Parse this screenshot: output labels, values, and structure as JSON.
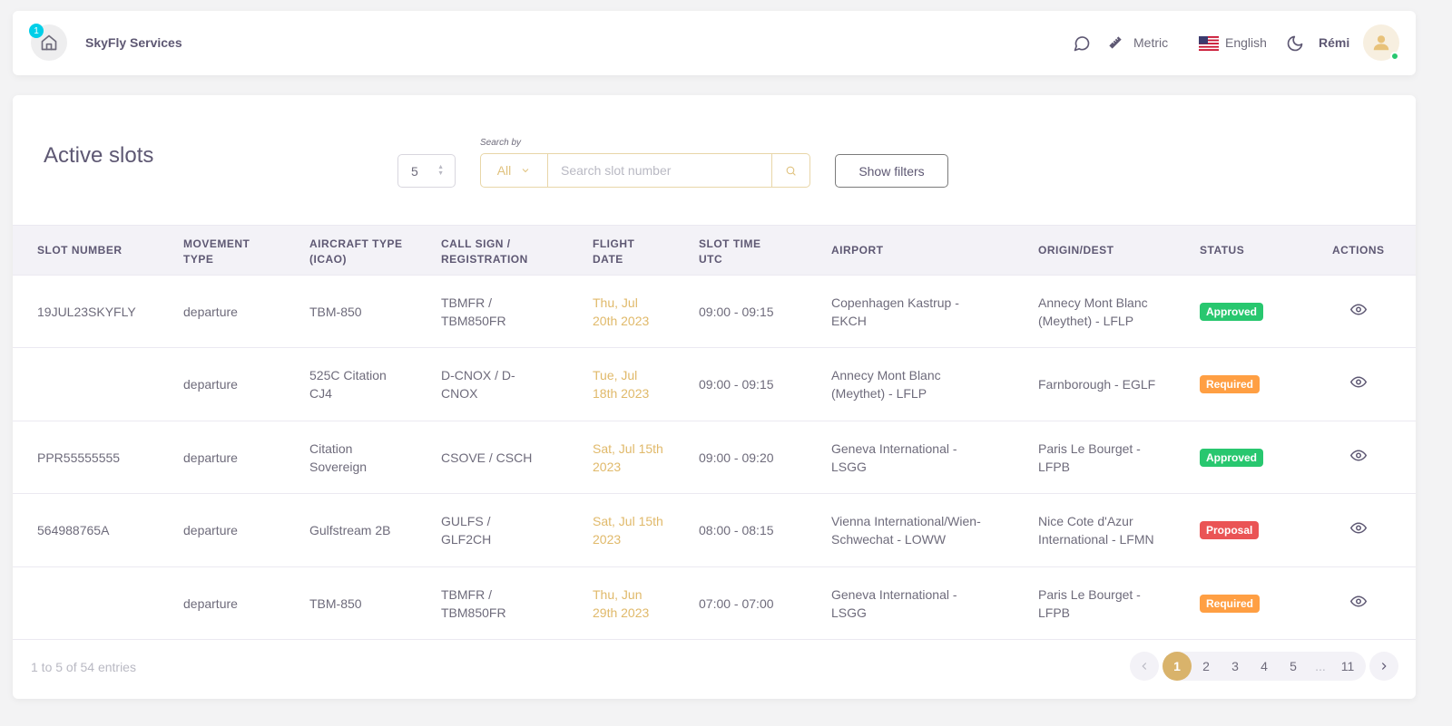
{
  "header": {
    "notification_count": "1",
    "brand": "SkyFly Services",
    "units_label": "Metric",
    "language_label": "English",
    "user_name": "Rémi"
  },
  "page": {
    "title": "Active slots",
    "per_page_value": "5",
    "search_by_label": "Search by",
    "search_by_value": "All",
    "search_placeholder": "Search slot number",
    "show_filters_label": "Show filters"
  },
  "table": {
    "columns": [
      "Slot number",
      "Movement type",
      "Aircraft type (ICAO)",
      "Call sign / Registration",
      "Flight date",
      "Slot time UTC",
      "Airport",
      "Origin/Dest",
      "Status",
      "Actions"
    ],
    "rows": [
      {
        "slot": "19JUL23SKYFLY",
        "movement": "departure",
        "aircraft": "TBM-850",
        "callsign": "TBMFR / TBM850FR",
        "date": "Thu, Jul 20th 2023",
        "time": "09:00 - 09:15",
        "airport": "Copenhagen Kastrup - EKCH",
        "origin": "Annecy Mont Blanc (Meythet) - LFLP",
        "status": "Approved"
      },
      {
        "slot": "",
        "movement": "departure",
        "aircraft": "525C Citation CJ4",
        "callsign": "D-CNOX / D-CNOX",
        "date": "Tue, Jul 18th 2023",
        "time": "09:00 - 09:15",
        "airport": "Annecy Mont Blanc (Meythet) - LFLP",
        "origin": "Farnborough - EGLF",
        "status": "Required"
      },
      {
        "slot": "PPR55555555",
        "movement": "departure",
        "aircraft": "Citation Sovereign",
        "callsign": "CSOVE / CSCH",
        "date": "Sat, Jul 15th 2023",
        "time": "09:00 - 09:20",
        "airport": "Geneva International - LSGG",
        "origin": "Paris Le Bourget - LFPB",
        "status": "Approved"
      },
      {
        "slot": "564988765A",
        "movement": "departure",
        "aircraft": "Gulfstream 2B",
        "callsign": "GULFS / GLF2CH",
        "date": "Sat, Jul 15th 2023",
        "time": "08:00 - 08:15",
        "airport": "Vienna International/Wien-Schwechat - LOWW",
        "origin": "Nice Cote d'Azur International - LFMN",
        "status": "Proposal"
      },
      {
        "slot": "",
        "movement": "departure",
        "aircraft": "TBM-850",
        "callsign": "TBMFR / TBM850FR",
        "date": "Thu, Jun 29th 2023",
        "time": "07:00 - 07:00",
        "airport": "Geneva International - LSGG",
        "origin": "Paris Le Bourget - LFPB",
        "status": "Required"
      }
    ]
  },
  "status_colors": {
    "Approved": "#28c76f",
    "Required": "#ff9f43",
    "Proposal": "#ea5455"
  },
  "footer": {
    "entries_info": "1 to 5 of 54 entries",
    "pages": [
      "1",
      "2",
      "3",
      "4",
      "5",
      "...",
      "11"
    ],
    "active_page": "1"
  },
  "accent_color": "#d9b36b"
}
